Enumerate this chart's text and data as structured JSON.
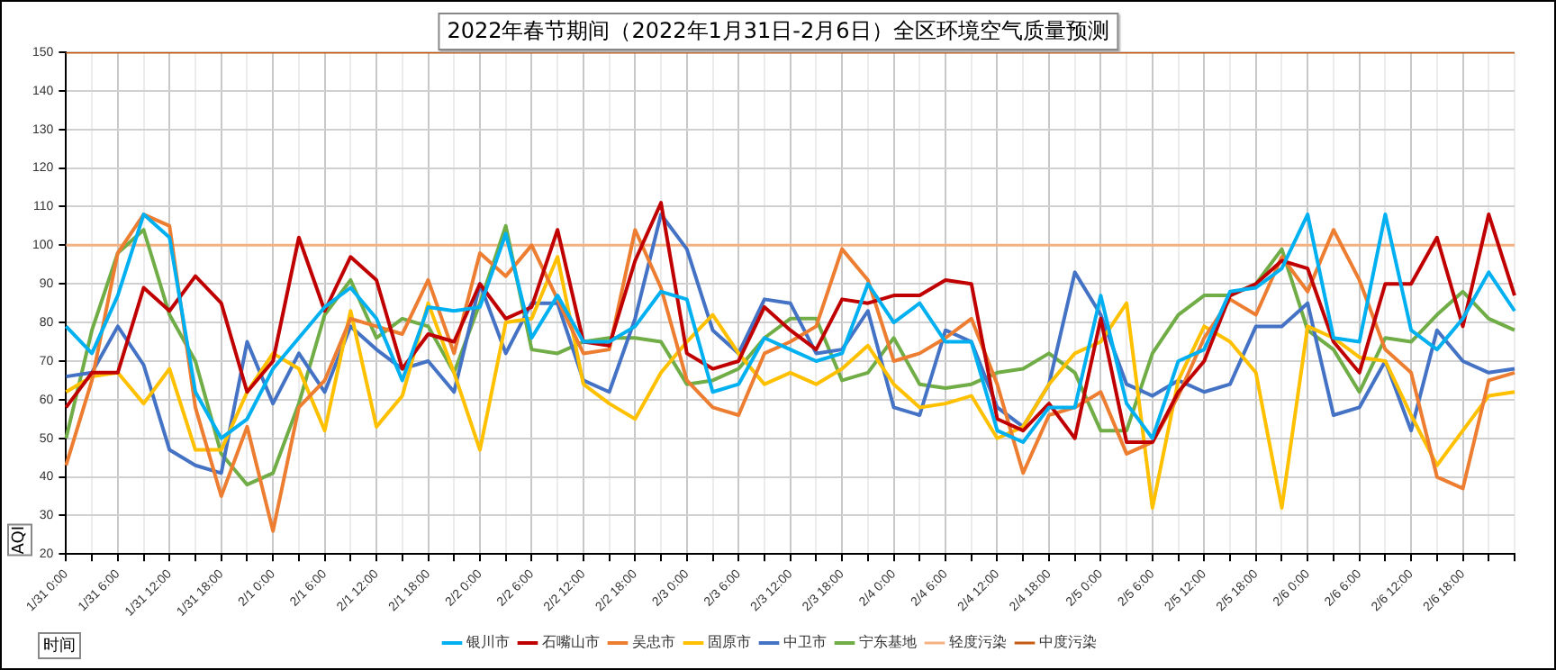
{
  "chart_data": {
    "type": "line",
    "title": "2022年春节期间（2022年1月31日-2月6日）全区环境空气质量预测",
    "xlabel": "时间",
    "ylabel": "AQI",
    "categories": [
      "1/31 0:00",
      null,
      "1/31 6:00",
      null,
      "1/31 12:00",
      null,
      "1/31 18:00",
      null,
      "2/1 0:00",
      null,
      "2/1 6:00",
      null,
      "2/1 12:00",
      null,
      "2/1 18:00",
      null,
      "2/2 0:00",
      null,
      "2/2 6:00",
      null,
      "2/2 12:00",
      null,
      "2/2 18:00",
      null,
      "2/3 0:00",
      null,
      "2/3 6:00",
      null,
      "2/3 12:00",
      null,
      "2/3 18:00",
      null,
      "2/4 0:00",
      null,
      "2/4 6:00",
      null,
      "2/4 12:00",
      null,
      "2/4 18:00",
      null,
      "2/5 0:00",
      null,
      "2/5 6:00",
      null,
      "2/5 12:00",
      null,
      "2/5 18:00",
      null,
      "2/6 0:00",
      null,
      "2/6 6:00",
      null,
      "2/6 12:00",
      null,
      "2/6 18:00",
      null,
      null
    ],
    "series": [
      {
        "name": "银川市",
        "color": "#00b0f0",
        "values": [
          79,
          72,
          87,
          108,
          102,
          62,
          50,
          55,
          68,
          76,
          84,
          89,
          81,
          65,
          84,
          83,
          84,
          103,
          76,
          87,
          75,
          75,
          79,
          88,
          86,
          62,
          64,
          76,
          73,
          70,
          72,
          90,
          80,
          85,
          75,
          75,
          52,
          49,
          58,
          58,
          87,
          59,
          50,
          70,
          73,
          88,
          89,
          94,
          108,
          76,
          75,
          108,
          78,
          73,
          81,
          93,
          83
        ]
      },
      {
        "name": "石嘴山市",
        "color": "#c00000",
        "values": [
          58,
          67,
          67,
          89,
          83,
          92,
          85,
          62,
          70,
          102,
          83,
          97,
          91,
          68,
          77,
          75,
          90,
          81,
          84,
          104,
          75,
          74,
          96,
          111,
          72,
          68,
          70,
          84,
          78,
          73,
          86,
          85,
          87,
          87,
          91,
          90,
          55,
          52,
          59,
          50,
          81,
          49,
          49,
          62,
          70,
          87,
          90,
          96,
          94,
          75,
          67,
          90,
          90,
          102,
          79,
          108,
          87
        ]
      },
      {
        "name": "吴忠市",
        "color": "#ed7d31",
        "values": [
          43,
          65,
          98,
          108,
          105,
          58,
          35,
          53,
          26,
          58,
          65,
          81,
          79,
          77,
          91,
          72,
          98,
          92,
          100,
          86,
          72,
          73,
          104,
          89,
          65,
          58,
          56,
          72,
          75,
          79,
          99,
          91,
          70,
          72,
          76,
          81,
          64,
          41,
          56,
          58,
          62,
          46,
          49,
          61,
          76,
          86,
          82,
          97,
          88,
          104,
          91,
          73,
          67,
          40,
          37,
          65,
          67
        ]
      },
      {
        "name": "固原市",
        "color": "#ffc000",
        "values": [
          62,
          66,
          67,
          59,
          68,
          47,
          47,
          62,
          72,
          68,
          52,
          83,
          53,
          61,
          85,
          67,
          47,
          80,
          81,
          97,
          64,
          59,
          55,
          67,
          75,
          82,
          72,
          64,
          67,
          64,
          68,
          74,
          64,
          58,
          59,
          61,
          50,
          53,
          64,
          72,
          75,
          85,
          32,
          65,
          79,
          75,
          67,
          32,
          79,
          76,
          71,
          70,
          56,
          43,
          52,
          61,
          62
        ]
      },
      {
        "name": "中卫市",
        "color": "#4472c4",
        "values": [
          66,
          67,
          79,
          69,
          47,
          43,
          41,
          75,
          59,
          72,
          62,
          79,
          73,
          68,
          70,
          62,
          90,
          72,
          85,
          85,
          65,
          62,
          81,
          108,
          99,
          78,
          72,
          86,
          85,
          72,
          73,
          83,
          58,
          56,
          78,
          75,
          58,
          53,
          64,
          93,
          82,
          64,
          61,
          65,
          62,
          64,
          79,
          79,
          85,
          56,
          58,
          70,
          52,
          78,
          70,
          67,
          68
        ]
      },
      {
        "name": "宁东基地",
        "color": "#70ad47",
        "values": [
          50,
          78,
          98,
          104,
          82,
          70,
          46,
          38,
          41,
          59,
          82,
          91,
          76,
          81,
          79,
          67,
          85,
          105,
          73,
          72,
          75,
          76,
          76,
          75,
          64,
          65,
          68,
          76,
          81,
          81,
          65,
          67,
          76,
          64,
          63,
          64,
          67,
          68,
          72,
          67,
          52,
          52,
          72,
          82,
          87,
          87,
          90,
          99,
          78,
          73,
          62,
          76,
          75,
          82,
          88,
          81,
          78
        ]
      }
    ],
    "ref_lines": [
      {
        "axis": "y",
        "value": 100,
        "label": "轻度污染",
        "color": "#f4b183"
      },
      {
        "axis": "y",
        "value": 150,
        "label": "中度污染",
        "color": "#c55a11"
      }
    ],
    "ylim": [
      20,
      150
    ],
    "yticks": [
      20,
      30,
      40,
      50,
      60,
      70,
      80,
      90,
      100,
      110,
      120,
      130,
      140,
      150
    ],
    "grid": true,
    "legend": "bottom",
    "marker": "none",
    "line_style": "solid"
  }
}
